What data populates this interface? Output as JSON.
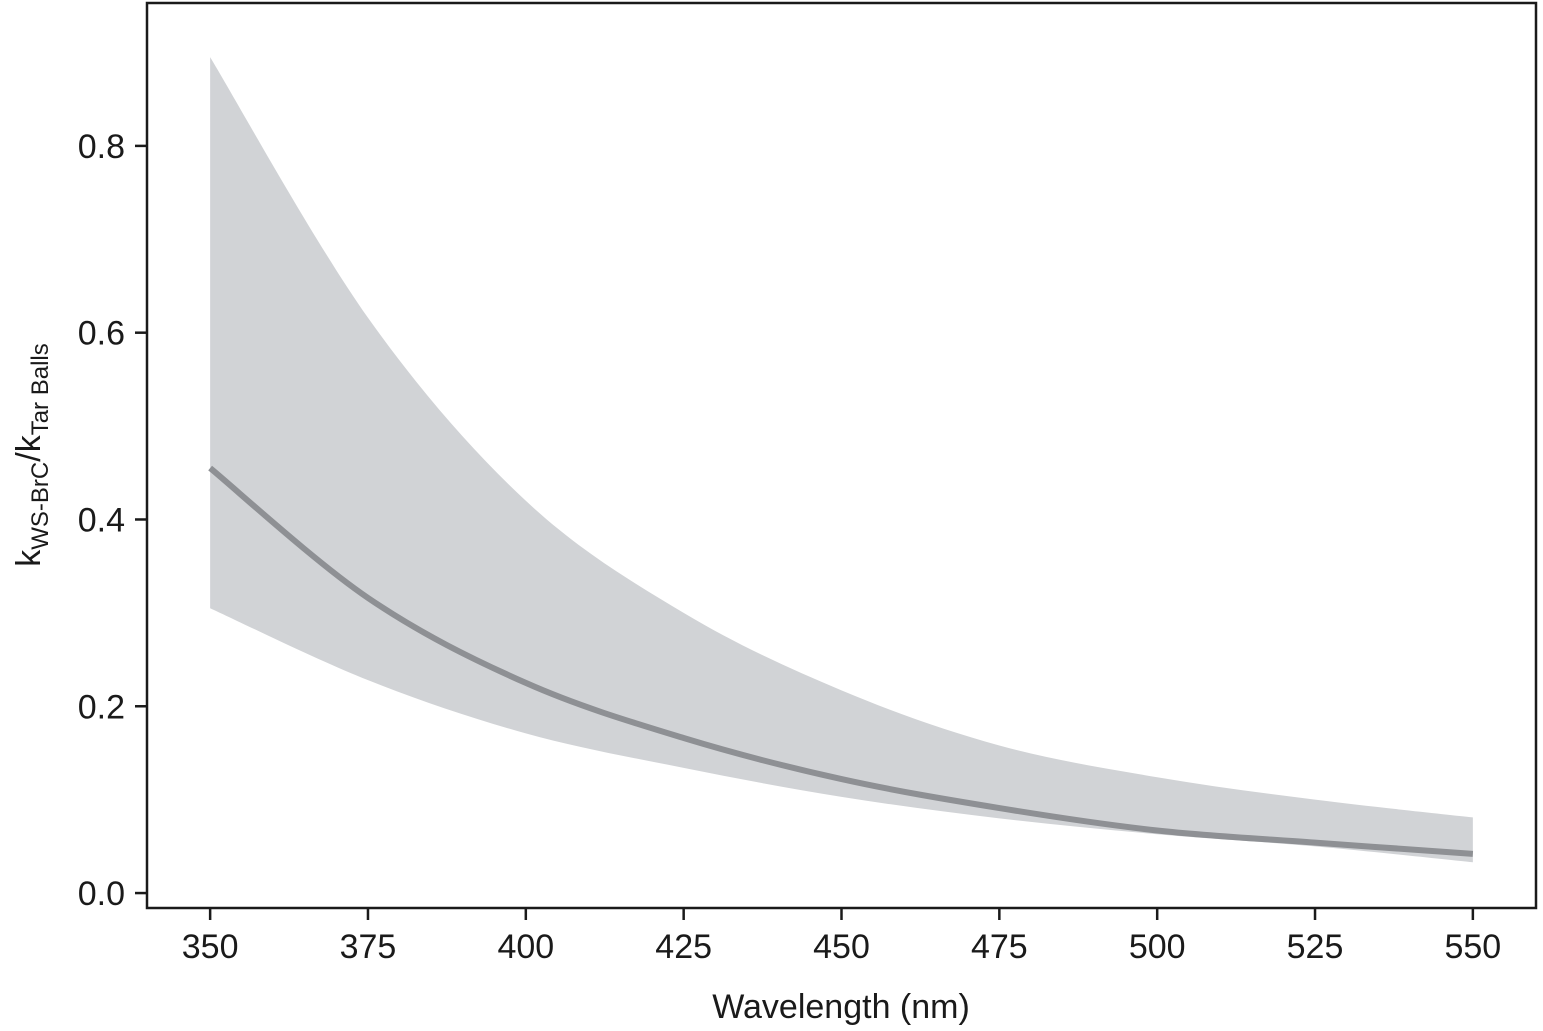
{
  "chart_data": {
    "type": "line",
    "xlabel": "Wavelength (nm)",
    "ylabel": {
      "k1": "k",
      "sub1": "WS-BrC",
      "k2": "/k",
      "sub2": "Tar Balls"
    },
    "x": [
      350,
      375,
      400,
      425,
      450,
      475,
      500,
      525,
      550
    ],
    "values": [
      0.455,
      0.316,
      0.225,
      0.166,
      0.122,
      0.091,
      0.067,
      0.054,
      0.042
    ],
    "band": {
      "lower": [
        0.305,
        0.228,
        0.171,
        0.134,
        0.103,
        0.08,
        0.063,
        0.05,
        0.033
      ],
      "upper": [
        0.895,
        0.616,
        0.42,
        0.3,
        0.217,
        0.158,
        0.124,
        0.1,
        0.081
      ],
      "color": "#d1d3d6"
    },
    "color": "#8e9094",
    "xlim": [
      340,
      560
    ],
    "ylim": [
      -0.016,
      0.953
    ],
    "xticks": [
      350,
      375,
      400,
      425,
      450,
      475,
      500,
      525,
      550
    ],
    "yticks": [
      {
        "value": 0,
        "label": "0.0"
      },
      0.2,
      0.4,
      0.6,
      0.8
    ]
  }
}
